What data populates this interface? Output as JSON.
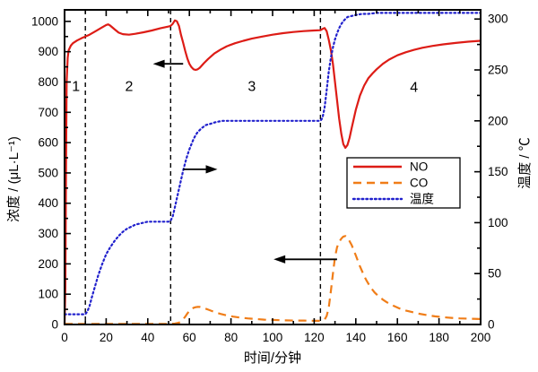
{
  "axes": {
    "x": {
      "label": "时间/分钟",
      "min": 0,
      "max": 200,
      "major_step": 20,
      "minor_step": 10,
      "tick_labels": [
        "0",
        "20",
        "40",
        "60",
        "80",
        "100",
        "120",
        "140",
        "160",
        "180",
        "200"
      ]
    },
    "y_left": {
      "label": "浓度 / (μL·L⁻¹)",
      "min": 0,
      "max": 1038,
      "major_step": 100,
      "minor_step": 50,
      "tick_labels": [
        "0",
        "100",
        "200",
        "300",
        "400",
        "500",
        "600",
        "700",
        "800",
        "900",
        "1000"
      ]
    },
    "y_right": {
      "label": "温度 / ℃",
      "min": 0,
      "max": 309,
      "major_step": 50,
      "minor_step": 25,
      "tick_labels": [
        "0",
        "50",
        "100",
        "150",
        "200",
        "250",
        "300"
      ]
    }
  },
  "chart_data": {
    "type": "line",
    "title": "",
    "xlabel": "时间/分钟",
    "ylabel_left": "浓度 / (μL·L⁻¹)",
    "ylabel_right": "温度 / ℃",
    "x_range": [
      0,
      200
    ],
    "y_left_range": [
      0,
      1000
    ],
    "y_right_range": [
      0,
      300
    ],
    "grid": false,
    "legend_position": "inside-middle-right",
    "colors": {
      "no": "#dd1c16",
      "co": "#f07d18",
      "temp": "#2121cd",
      "axis": "#000000"
    },
    "series": [
      {
        "name": "NO",
        "axis": "left",
        "color": "#dd1c16",
        "style": "solid",
        "points": [
          [
            0,
            0
          ],
          [
            0.4,
            120
          ],
          [
            0.7,
            500
          ],
          [
            1,
            800
          ],
          [
            1.5,
            880
          ],
          [
            2,
            905
          ],
          [
            3,
            920
          ],
          [
            4,
            928
          ],
          [
            6,
            937
          ],
          [
            8,
            944
          ],
          [
            10,
            950
          ],
          [
            12,
            956
          ],
          [
            15,
            968
          ],
          [
            18,
            980
          ],
          [
            20,
            988
          ],
          [
            21,
            990
          ],
          [
            22,
            986
          ],
          [
            24,
            974
          ],
          [
            26,
            963
          ],
          [
            28,
            958
          ],
          [
            31,
            956
          ],
          [
            34,
            959
          ],
          [
            38,
            964
          ],
          [
            42,
            970
          ],
          [
            46,
            977
          ],
          [
            50,
            983
          ],
          [
            51,
            985
          ],
          [
            52,
            992
          ],
          [
            53,
            1003
          ],
          [
            54,
            1000
          ],
          [
            55,
            985
          ],
          [
            56,
            955
          ],
          [
            57,
            930
          ],
          [
            58,
            902
          ],
          [
            59,
            878
          ],
          [
            60,
            860
          ],
          [
            61,
            849
          ],
          [
            62,
            842
          ],
          [
            63,
            840
          ],
          [
            64,
            842
          ],
          [
            65,
            847
          ],
          [
            67,
            862
          ],
          [
            69,
            876
          ],
          [
            72,
            894
          ],
          [
            75,
            907
          ],
          [
            78,
            918
          ],
          [
            82,
            928
          ],
          [
            86,
            936
          ],
          [
            90,
            943
          ],
          [
            95,
            950
          ],
          [
            100,
            956
          ],
          [
            105,
            961
          ],
          [
            110,
            965
          ],
          [
            115,
            968
          ],
          [
            120,
            970
          ],
          [
            123,
            971
          ],
          [
            124,
            975
          ],
          [
            125,
            978
          ],
          [
            126,
            968
          ],
          [
            127,
            940
          ],
          [
            128,
            905
          ],
          [
            129,
            860
          ],
          [
            130,
            800
          ],
          [
            131,
            740
          ],
          [
            132,
            680
          ],
          [
            133,
            630
          ],
          [
            134,
            595
          ],
          [
            135,
            583
          ],
          [
            136,
            592
          ],
          [
            137,
            615
          ],
          [
            138,
            648
          ],
          [
            139,
            678
          ],
          [
            140,
            708
          ],
          [
            142,
            755
          ],
          [
            144,
            788
          ],
          [
            146,
            812
          ],
          [
            148,
            828
          ],
          [
            150,
            842
          ],
          [
            153,
            860
          ],
          [
            156,
            874
          ],
          [
            160,
            888
          ],
          [
            164,
            898
          ],
          [
            168,
            906
          ],
          [
            172,
            913
          ],
          [
            177,
            919
          ],
          [
            182,
            924
          ],
          [
            188,
            929
          ],
          [
            194,
            933
          ],
          [
            200,
            936
          ]
        ]
      },
      {
        "name": "CO",
        "axis": "left",
        "color": "#f07d18",
        "style": "dashed",
        "points": [
          [
            0,
            2
          ],
          [
            50,
            2
          ],
          [
            53,
            3
          ],
          [
            55,
            6
          ],
          [
            56,
            10
          ],
          [
            57,
            17
          ],
          [
            58,
            26
          ],
          [
            59,
            36
          ],
          [
            60,
            45
          ],
          [
            61,
            51
          ],
          [
            62,
            55
          ],
          [
            63,
            57
          ],
          [
            64,
            58
          ],
          [
            65,
            58
          ],
          [
            66,
            56
          ],
          [
            67,
            54
          ],
          [
            69,
            49
          ],
          [
            71,
            44
          ],
          [
            73,
            39
          ],
          [
            75,
            35
          ],
          [
            78,
            30
          ],
          [
            81,
            26
          ],
          [
            84,
            23
          ],
          [
            88,
            20
          ],
          [
            92,
            18
          ],
          [
            96,
            16
          ],
          [
            100,
            15
          ],
          [
            105,
            14
          ],
          [
            110,
            13
          ],
          [
            115,
            13
          ],
          [
            120,
            12
          ],
          [
            123,
            12
          ],
          [
            124,
            13
          ],
          [
            125,
            16
          ],
          [
            126,
            28
          ],
          [
            127,
            55
          ],
          [
            128,
            110
          ],
          [
            129,
            168
          ],
          [
            130,
            222
          ],
          [
            131,
            255
          ],
          [
            132,
            272
          ],
          [
            133,
            283
          ],
          [
            134,
            290
          ],
          [
            135,
            292
          ],
          [
            136,
            287
          ],
          [
            137,
            275
          ],
          [
            138,
            262
          ],
          [
            139,
            245
          ],
          [
            140,
            228
          ],
          [
            141,
            210
          ],
          [
            142,
            192
          ],
          [
            143,
            176
          ],
          [
            144,
            160
          ],
          [
            145,
            147
          ],
          [
            147,
            124
          ],
          [
            149,
            106
          ],
          [
            151,
            93
          ],
          [
            153,
            82
          ],
          [
            155,
            73
          ],
          [
            158,
            62
          ],
          [
            161,
            53
          ],
          [
            164,
            46
          ],
          [
            167,
            41
          ],
          [
            170,
            36
          ],
          [
            174,
            31
          ],
          [
            178,
            27
          ],
          [
            182,
            24
          ],
          [
            186,
            22
          ],
          [
            190,
            20
          ],
          [
            195,
            19
          ],
          [
            200,
            18
          ]
        ]
      },
      {
        "name": "温度",
        "axis": "right",
        "color": "#2121cd",
        "style": "dotted",
        "points": [
          [
            0,
            10
          ],
          [
            9,
            10
          ],
          [
            10,
            10
          ],
          [
            11,
            13
          ],
          [
            12,
            18
          ],
          [
            13,
            26
          ],
          [
            14,
            33
          ],
          [
            15,
            40
          ],
          [
            16,
            47
          ],
          [
            17,
            53
          ],
          [
            18,
            59
          ],
          [
            19,
            64
          ],
          [
            20,
            69
          ],
          [
            22,
            76
          ],
          [
            24,
            82
          ],
          [
            26,
            87
          ],
          [
            28,
            91
          ],
          [
            30,
            94
          ],
          [
            32,
            96
          ],
          [
            34,
            98
          ],
          [
            36,
            99
          ],
          [
            38,
            100
          ],
          [
            40,
            101
          ],
          [
            45,
            101
          ],
          [
            50,
            101
          ],
          [
            51,
            102
          ],
          [
            52,
            106
          ],
          [
            53,
            115
          ],
          [
            54,
            124
          ],
          [
            55,
            133
          ],
          [
            56,
            142
          ],
          [
            57,
            151
          ],
          [
            58,
            159
          ],
          [
            59,
            166
          ],
          [
            60,
            172
          ],
          [
            61,
            177
          ],
          [
            62,
            182
          ],
          [
            63,
            186
          ],
          [
            64,
            189
          ],
          [
            66,
            193
          ],
          [
            68,
            196
          ],
          [
            70,
            197
          ],
          [
            73,
            199
          ],
          [
            76,
            200
          ],
          [
            80,
            200
          ],
          [
            90,
            200
          ],
          [
            100,
            200
          ],
          [
            110,
            200
          ],
          [
            120,
            200
          ],
          [
            123,
            200
          ],
          [
            124,
            203
          ],
          [
            125,
            213
          ],
          [
            126,
            230
          ],
          [
            127,
            248
          ],
          [
            128,
            262
          ],
          [
            129,
            272
          ],
          [
            130,
            280
          ],
          [
            131,
            286
          ],
          [
            132,
            291
          ],
          [
            133,
            295
          ],
          [
            134,
            298
          ],
          [
            135,
            300
          ],
          [
            136,
            302
          ],
          [
            138,
            303
          ],
          [
            140,
            304
          ],
          [
            143,
            305
          ],
          [
            146,
            305
          ],
          [
            150,
            306
          ],
          [
            160,
            306
          ],
          [
            170,
            306
          ],
          [
            180,
            306
          ],
          [
            200,
            306
          ]
        ]
      }
    ],
    "annotations": {
      "stage_lines_x": [
        10,
        51,
        123
      ],
      "stage_labels": [
        {
          "text": "1",
          "x": 5.5,
          "y": 785
        },
        {
          "text": "2",
          "x": 31,
          "y": 785
        },
        {
          "text": "3",
          "x": 90,
          "y": 785
        },
        {
          "text": "4",
          "x": 168,
          "y": 782
        }
      ],
      "arrows": [
        {
          "dir": "left",
          "x_tail": 57,
          "x_tip": 42.5,
          "y": 860
        },
        {
          "dir": "right",
          "x_tail": 57,
          "x_tip": 73.5,
          "y": 512
        },
        {
          "dir": "left",
          "x_tail": 131,
          "x_tip": 100.5,
          "y": 215
        }
      ]
    },
    "legend": {
      "entries": [
        "NO",
        "CO",
        "温度"
      ]
    }
  }
}
